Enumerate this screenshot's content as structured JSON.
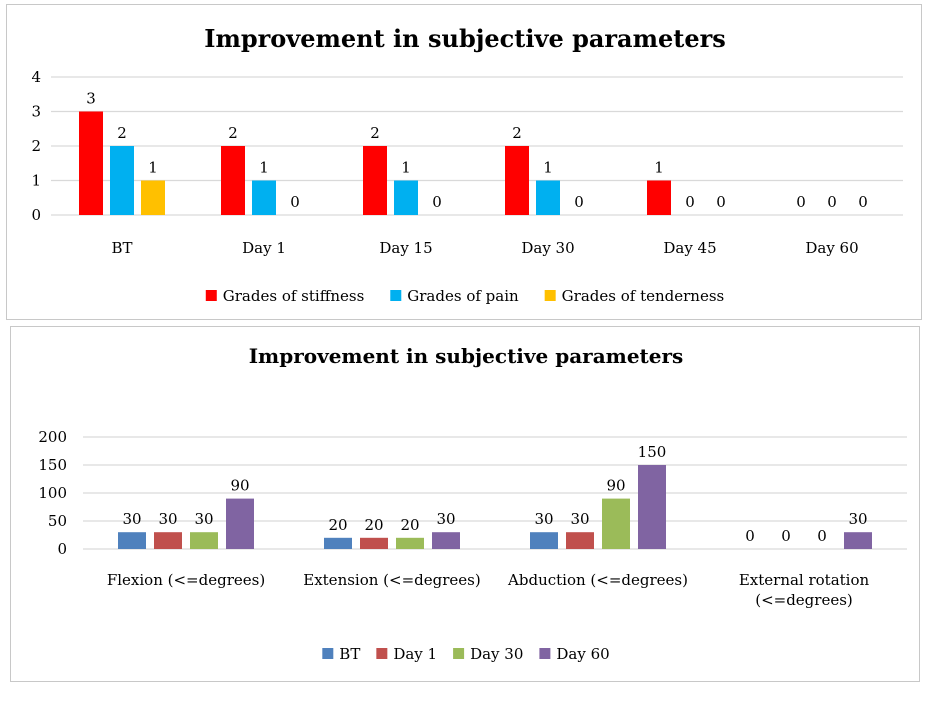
{
  "chart_data": [
    {
      "type": "bar",
      "title": "Improvement in subjective parameters",
      "xlabel": "",
      "ylabel": "",
      "ylim": [
        0,
        4
      ],
      "yticks": [
        "0",
        "1",
        "2",
        "3",
        "4"
      ],
      "grid": true,
      "legend_position": "bottom",
      "categories": [
        "BT",
        "Day 1",
        "Day 15",
        "Day 30",
        "Day 45",
        "Day 60"
      ],
      "series": [
        {
          "name": "Grades of stiffness",
          "color": "#ff0000",
          "values": [
            3,
            2,
            2,
            2,
            1,
            0
          ],
          "labels": [
            "3",
            "2",
            "2",
            "2",
            "1",
            "0"
          ]
        },
        {
          "name": "Grades of pain",
          "color": "#00b0f0",
          "values": [
            2,
            1,
            1,
            1,
            0,
            0
          ],
          "labels": [
            "2",
            "1",
            "1",
            "1",
            "0",
            "0"
          ]
        },
        {
          "name": "Grades of tenderness",
          "color": "#ffc000",
          "values": [
            1,
            0,
            0,
            0,
            0,
            0
          ],
          "labels": [
            "1",
            "0",
            "0",
            "0",
            "0",
            "0"
          ]
        }
      ]
    },
    {
      "type": "bar",
      "title": "Improvement in subjective parameters",
      "xlabel": "",
      "ylabel": "",
      "ylim": [
        0,
        200
      ],
      "yticks": [
        "0",
        "50",
        "100",
        "150",
        "200"
      ],
      "grid": true,
      "legend_position": "bottom",
      "categories": [
        [
          "Flexion (<=degrees)"
        ],
        [
          "Extension (<=degrees)"
        ],
        [
          "Abduction (<=degrees)"
        ],
        [
          "External rotation",
          "(<=degrees)"
        ]
      ],
      "series": [
        {
          "name": "BT",
          "color": "#4f81bd",
          "values": [
            30,
            20,
            30,
            0
          ],
          "labels": [
            "30",
            "20",
            "30",
            "0"
          ]
        },
        {
          "name": "Day 1",
          "color": "#c0504d",
          "values": [
            30,
            20,
            30,
            0
          ],
          "labels": [
            "30",
            "20",
            "30",
            "0"
          ]
        },
        {
          "name": "Day 30",
          "color": "#9bbb59",
          "values": [
            30,
            20,
            90,
            0
          ],
          "labels": [
            "30",
            "20",
            "90",
            "0"
          ]
        },
        {
          "name": "Day 60",
          "color": "#8064a2",
          "values": [
            90,
            30,
            150,
            30
          ],
          "labels": [
            "90",
            "30",
            "150",
            "30"
          ]
        }
      ]
    }
  ]
}
